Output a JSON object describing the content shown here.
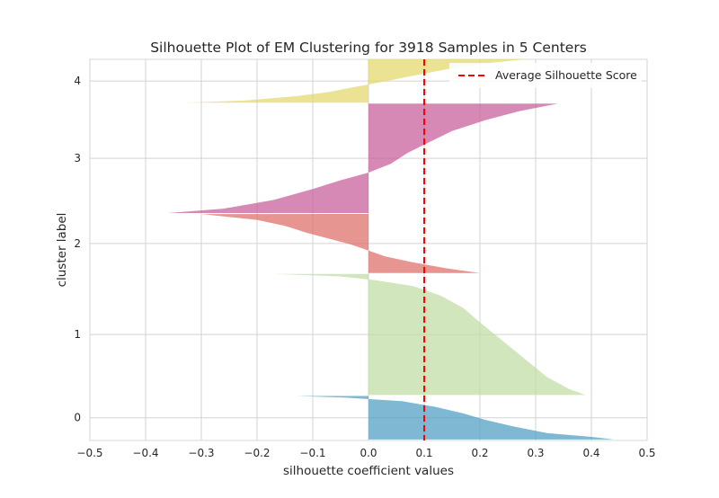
{
  "chart_data": {
    "type": "area",
    "title": "Silhouette Plot of EM Clustering for 3918 Samples in 5 Centers",
    "xlabel": "silhouette coefficient values",
    "ylabel": "cluster label",
    "xlim": [
      -0.5,
      0.5
    ],
    "ylim": [
      -10,
      3928
    ],
    "x_ticks": [
      "−0.5",
      "−0.4",
      "−0.3",
      "−0.2",
      "−0.1",
      "0.0",
      "0.1",
      "0.2",
      "0.3",
      "0.4",
      "0.5"
    ],
    "x_tick_values": [
      -0.5,
      -0.4,
      -0.3,
      -0.2,
      -0.1,
      0.0,
      0.1,
      0.2,
      0.3,
      0.4,
      0.5
    ],
    "grid": true,
    "legend": {
      "placement": "top-right",
      "entries": [
        "Average Silhouette Score"
      ]
    },
    "average_silhouette_score": 0.1,
    "average_line_color": "#ff0000",
    "clusters": [
      {
        "label": "0",
        "color": "#4c9cc1",
        "y_start": 0,
        "y_end": 450,
        "silhouette_profile": [
          [
            0,
            0.44
          ],
          [
            0.06,
            0.4
          ],
          [
            0.15,
            0.32
          ],
          [
            0.3,
            0.26
          ],
          [
            0.45,
            0.21
          ],
          [
            0.6,
            0.17
          ],
          [
            0.75,
            0.12
          ],
          [
            0.88,
            0.06
          ],
          [
            0.96,
            -0.04
          ],
          [
            1.0,
            -0.13
          ]
        ]
      },
      {
        "label": "1",
        "color": "#c1dca3",
        "y_start": 460,
        "y_end": 1710,
        "silhouette_profile": [
          [
            0,
            0.39
          ],
          [
            0.05,
            0.36
          ],
          [
            0.15,
            0.32
          ],
          [
            0.3,
            0.28
          ],
          [
            0.45,
            0.24
          ],
          [
            0.6,
            0.2
          ],
          [
            0.72,
            0.17
          ],
          [
            0.82,
            0.13
          ],
          [
            0.9,
            0.08
          ],
          [
            0.95,
            0.01
          ],
          [
            0.98,
            -0.05
          ],
          [
            1.0,
            -0.17
          ]
        ]
      },
      {
        "label": "2",
        "color": "#dd6c66",
        "y_start": 1720,
        "y_end": 2330,
        "silhouette_profile": [
          [
            0,
            0.2
          ],
          [
            0.08,
            0.14
          ],
          [
            0.18,
            0.08
          ],
          [
            0.28,
            0.03
          ],
          [
            0.38,
            0.0
          ],
          [
            0.48,
            -0.03
          ],
          [
            0.58,
            -0.07
          ],
          [
            0.68,
            -0.11
          ],
          [
            0.8,
            -0.15
          ],
          [
            0.9,
            -0.2
          ],
          [
            1.0,
            -0.3
          ]
        ]
      },
      {
        "label": "3",
        "color": "#c75b99",
        "y_start": 2340,
        "y_end": 3470,
        "silhouette_profile": [
          [
            0,
            -0.36
          ],
          [
            0.04,
            -0.26
          ],
          [
            0.12,
            -0.17
          ],
          [
            0.22,
            -0.1
          ],
          [
            0.3,
            -0.05
          ],
          [
            0.37,
            0.0
          ],
          [
            0.45,
            0.04
          ],
          [
            0.55,
            0.07
          ],
          [
            0.65,
            0.11
          ],
          [
            0.75,
            0.15
          ],
          [
            0.85,
            0.21
          ],
          [
            0.93,
            0.27
          ],
          [
            1.0,
            0.34
          ]
        ]
      },
      {
        "label": "4",
        "color": "#e3d769",
        "y_start": 3480,
        "y_end": 3928,
        "silhouette_profile": [
          [
            0,
            -0.33
          ],
          [
            0.05,
            -0.22
          ],
          [
            0.15,
            -0.13
          ],
          [
            0.25,
            -0.07
          ],
          [
            0.35,
            -0.03
          ],
          [
            0.42,
            0.0
          ],
          [
            0.52,
            0.04
          ],
          [
            0.62,
            0.08
          ],
          [
            0.72,
            0.12
          ],
          [
            0.82,
            0.16
          ],
          [
            0.92,
            0.22
          ],
          [
            1.0,
            0.28
          ]
        ]
      }
    ]
  }
}
